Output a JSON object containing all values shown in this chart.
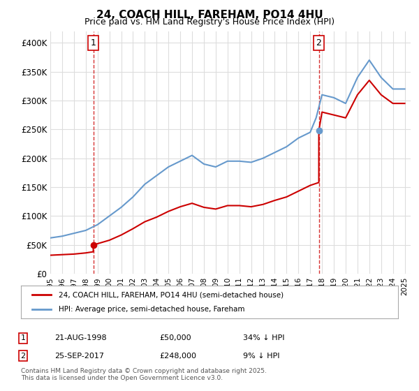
{
  "title": "24, COACH HILL, FAREHAM, PO14 4HU",
  "subtitle": "Price paid vs. HM Land Registry's House Price Index (HPI)",
  "ylabel_ticks": [
    "£0",
    "£50K",
    "£100K",
    "£150K",
    "£200K",
    "£250K",
    "£300K",
    "£350K",
    "£400K"
  ],
  "ytick_values": [
    0,
    50000,
    100000,
    150000,
    200000,
    250000,
    300000,
    350000,
    400000
  ],
  "ylim": [
    0,
    420000
  ],
  "xlim_start": 1995.0,
  "xlim_end": 2025.5,
  "sale1_date": 1998.64,
  "sale1_price": 50000,
  "sale1_label": "1",
  "sale2_date": 2017.73,
  "sale2_price": 248000,
  "sale2_label": "2",
  "property_color": "#cc0000",
  "hpi_color": "#6699cc",
  "vline_color": "#cc0000",
  "legend_property": "24, COACH HILL, FAREHAM, PO14 4HU (semi-detached house)",
  "legend_hpi": "HPI: Average price, semi-detached house, Fareham",
  "table_row1": [
    "1",
    "21-AUG-1998",
    "£50,000",
    "34% ↓ HPI"
  ],
  "table_row2": [
    "2",
    "25-SEP-2017",
    "£248,000",
    "9% ↓ HPI"
  ],
  "footnote": "Contains HM Land Registry data © Crown copyright and database right 2025.\nThis data is licensed under the Open Government Licence v3.0.",
  "background_color": "#ffffff",
  "grid_color": "#dddddd",
  "xtick_years": [
    1995,
    1996,
    1997,
    1998,
    1999,
    2000,
    2001,
    2002,
    2003,
    2004,
    2005,
    2006,
    2007,
    2008,
    2009,
    2010,
    2011,
    2012,
    2013,
    2014,
    2015,
    2016,
    2017,
    2018,
    2019,
    2020,
    2021,
    2022,
    2023,
    2024,
    2025
  ]
}
